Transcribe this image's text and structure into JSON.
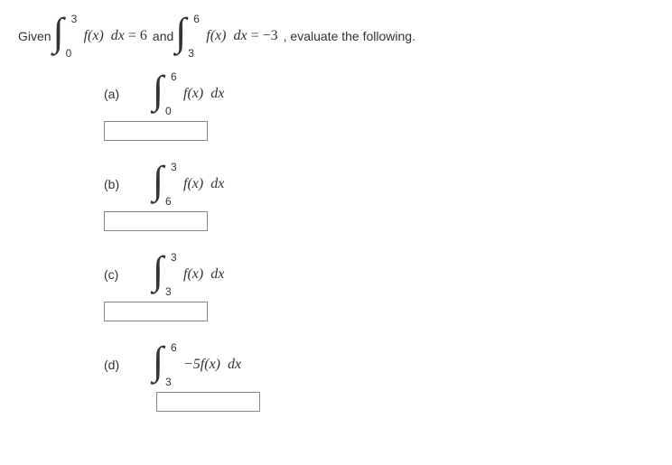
{
  "given": {
    "prefix": "Given",
    "int1": {
      "lower": "0",
      "upper": "3",
      "body": "f(x)",
      "dx": "dx",
      "equals": " = 6"
    },
    "connector": "and",
    "int2": {
      "lower": "3",
      "upper": "6",
      "body": "f(x)",
      "dx": "dx",
      "equals": " = −3"
    },
    "suffix": ", evaluate the following."
  },
  "problems": {
    "a": {
      "label": "(a)",
      "lower": "0",
      "upper": "6",
      "body": "f(x)",
      "dx": "dx",
      "value": ""
    },
    "b": {
      "label": "(b)",
      "lower": "6",
      "upper": "3",
      "body": "f(x)",
      "dx": "dx",
      "value": ""
    },
    "c": {
      "label": "(c)",
      "lower": "3",
      "upper": "3",
      "body": "f(x)",
      "dx": "dx",
      "value": ""
    },
    "d": {
      "label": "(d)",
      "lower": "3",
      "upper": "6",
      "body": "−5f(x)",
      "dx": "dx",
      "value": ""
    }
  }
}
